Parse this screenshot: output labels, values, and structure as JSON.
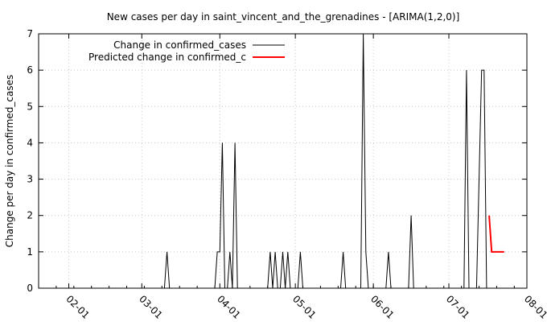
{
  "chart_data": {
    "type": "line",
    "title": "New cases per day in saint_vincent_and_the_grenadines -  [ARIMA(1,2,0)]",
    "xlabel": "",
    "ylabel": "Change per day in confirmed_cases",
    "x_ticks": [
      "02-01",
      "03-01",
      "04-01",
      "05-01",
      "06-01",
      "07-01",
      "08-01"
    ],
    "x_tick_dates": [
      "2020-02-01",
      "2020-03-01",
      "2020-04-01",
      "2020-05-01",
      "2020-06-01",
      "2020-07-01",
      "2020-08-01"
    ],
    "xlim": [
      "2020-01-20",
      "2020-08-01"
    ],
    "y_ticks": [
      "0",
      "1",
      "2",
      "3",
      "4",
      "5",
      "6",
      "7"
    ],
    "ylim": [
      0,
      7
    ],
    "grid": true,
    "legend_position": "top-left",
    "series": [
      {
        "name": "Change in confirmed_cases",
        "color": "#000000",
        "points": [
          [
            "2020-03-10",
            0
          ],
          [
            "2020-03-11",
            1
          ],
          [
            "2020-03-12",
            0
          ],
          [
            "2020-03-30",
            0
          ],
          [
            "2020-03-31",
            1
          ],
          [
            "2020-04-01",
            1
          ],
          [
            "2020-04-02",
            4
          ],
          [
            "2020-04-03",
            0
          ],
          [
            "2020-04-04",
            0
          ],
          [
            "2020-04-05",
            1
          ],
          [
            "2020-04-06",
            0
          ],
          [
            "2020-04-07",
            4
          ],
          [
            "2020-04-08",
            0
          ],
          [
            "2020-04-20",
            0
          ],
          [
            "2020-04-21",
            1
          ],
          [
            "2020-04-22",
            0
          ],
          [
            "2020-04-23",
            1
          ],
          [
            "2020-04-24",
            0
          ],
          [
            "2020-04-25",
            0
          ],
          [
            "2020-04-26",
            1
          ],
          [
            "2020-04-27",
            0
          ],
          [
            "2020-04-28",
            1
          ],
          [
            "2020-04-29",
            0
          ],
          [
            "2020-05-02",
            0
          ],
          [
            "2020-05-03",
            1
          ],
          [
            "2020-05-04",
            0
          ],
          [
            "2020-05-19",
            0
          ],
          [
            "2020-05-20",
            1
          ],
          [
            "2020-05-21",
            0
          ],
          [
            "2020-05-27",
            0
          ],
          [
            "2020-05-28",
            7
          ],
          [
            "2020-05-29",
            1
          ],
          [
            "2020-05-30",
            0
          ],
          [
            "2020-06-06",
            0
          ],
          [
            "2020-06-07",
            1
          ],
          [
            "2020-06-08",
            0
          ],
          [
            "2020-06-15",
            0
          ],
          [
            "2020-06-16",
            2
          ],
          [
            "2020-06-17",
            0
          ],
          [
            "2020-07-07",
            0
          ],
          [
            "2020-07-08",
            6
          ],
          [
            "2020-07-09",
            0
          ],
          [
            "2020-07-12",
            0
          ],
          [
            "2020-07-14",
            6
          ],
          [
            "2020-07-15",
            6
          ],
          [
            "2020-07-16",
            0
          ]
        ]
      },
      {
        "name": "Predicted change in confirmed_c",
        "color": "#ff0000",
        "points": [
          [
            "2020-07-17",
            2
          ],
          [
            "2020-07-18",
            1
          ],
          [
            "2020-07-19",
            1
          ],
          [
            "2020-07-20",
            1
          ],
          [
            "2020-07-21",
            1
          ],
          [
            "2020-07-22",
            1
          ],
          [
            "2020-07-23",
            1
          ]
        ]
      }
    ]
  }
}
